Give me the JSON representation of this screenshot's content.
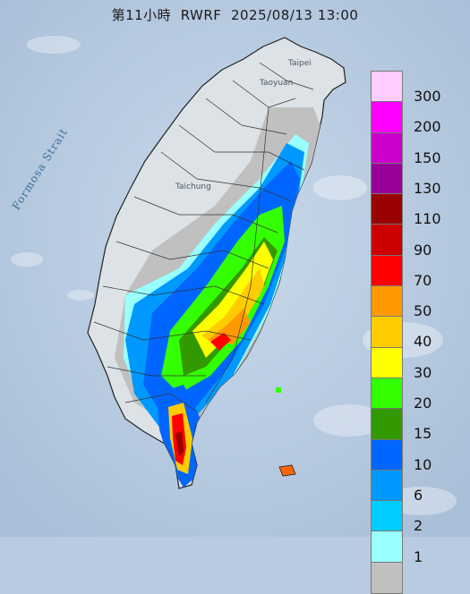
{
  "header": {
    "hour_label": "第11小時",
    "model": "RWRF",
    "datetime": "2025/08/13 13:00"
  },
  "map_labels": {
    "strait": "Formosa Strait",
    "taipei": "Taipei",
    "taoyuan": "Taoyuan",
    "taichung": "Taichung"
  },
  "legend": {
    "bins": [
      {
        "label": "300",
        "color": "#ffccff"
      },
      {
        "label": "200",
        "color": "#ff00ff"
      },
      {
        "label": "150",
        "color": "#cc00cc"
      },
      {
        "label": "130",
        "color": "#990099"
      },
      {
        "label": "110",
        "color": "#990000"
      },
      {
        "label": "90",
        "color": "#cc0000"
      },
      {
        "label": "70",
        "color": "#ff0000"
      },
      {
        "label": "50",
        "color": "#ff9900"
      },
      {
        "label": "40",
        "color": "#ffcc00"
      },
      {
        "label": "30",
        "color": "#ffff00"
      },
      {
        "label": "20",
        "color": "#33ff00"
      },
      {
        "label": "15",
        "color": "#339900"
      },
      {
        "label": "10",
        "color": "#0066ff"
      },
      {
        "label": "6",
        "color": "#0099ff"
      },
      {
        "label": "2",
        "color": "#00ccff"
      },
      {
        "label": "1",
        "color": "#99ffff"
      },
      {
        "label": "",
        "color": "#c0c0c0"
      }
    ]
  }
}
